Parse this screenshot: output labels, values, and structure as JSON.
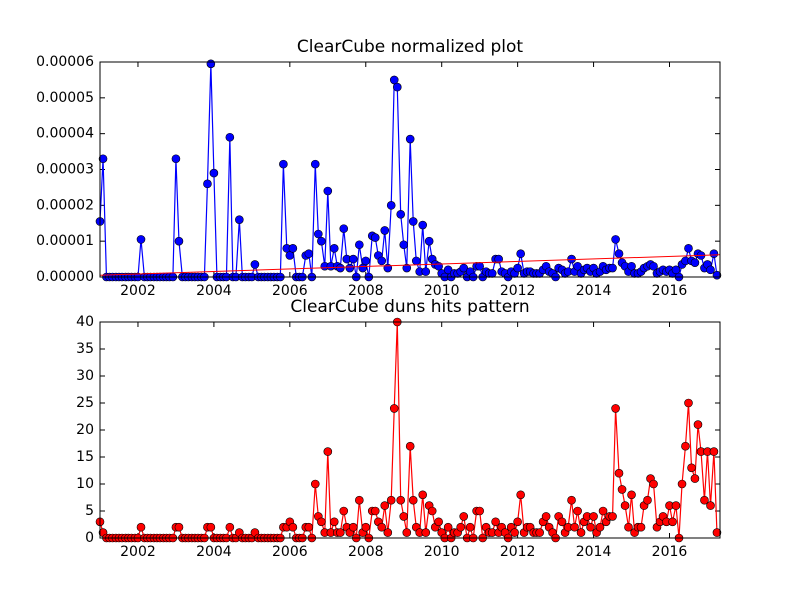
{
  "chart_data": [
    {
      "type": "line",
      "title": "ClearCube normalized plot",
      "x": [
        2001.0,
        2001.08,
        2001.17,
        2001.25,
        2001.33,
        2001.42,
        2001.5,
        2001.58,
        2001.67,
        2001.75,
        2001.83,
        2001.92,
        2002.0,
        2002.08,
        2002.17,
        2002.25,
        2002.33,
        2002.42,
        2002.5,
        2002.58,
        2002.67,
        2002.75,
        2002.83,
        2002.92,
        2003.0,
        2003.08,
        2003.17,
        2003.25,
        2003.33,
        2003.42,
        2003.5,
        2003.58,
        2003.67,
        2003.75,
        2003.83,
        2003.92,
        2004.0,
        2004.08,
        2004.17,
        2004.25,
        2004.33,
        2004.42,
        2004.5,
        2004.58,
        2004.67,
        2004.75,
        2004.83,
        2004.92,
        2005.0,
        2005.08,
        2005.17,
        2005.25,
        2005.33,
        2005.42,
        2005.5,
        2005.58,
        2005.67,
        2005.75,
        2005.83,
        2005.92,
        2006.0,
        2006.08,
        2006.17,
        2006.25,
        2006.33,
        2006.42,
        2006.5,
        2006.58,
        2006.67,
        2006.75,
        2006.83,
        2006.92,
        2007.0,
        2007.08,
        2007.17,
        2007.25,
        2007.33,
        2007.42,
        2007.5,
        2007.58,
        2007.67,
        2007.75,
        2007.83,
        2007.92,
        2008.0,
        2008.08,
        2008.17,
        2008.25,
        2008.33,
        2008.42,
        2008.5,
        2008.58,
        2008.67,
        2008.75,
        2008.83,
        2008.92,
        2009.0,
        2009.08,
        2009.17,
        2009.25,
        2009.33,
        2009.42,
        2009.5,
        2009.58,
        2009.67,
        2009.75,
        2009.83,
        2009.92,
        2010.0,
        2010.08,
        2010.17,
        2010.25,
        2010.33,
        2010.42,
        2010.5,
        2010.58,
        2010.67,
        2010.75,
        2010.83,
        2010.92,
        2011.0,
        2011.08,
        2011.17,
        2011.25,
        2011.33,
        2011.42,
        2011.5,
        2011.58,
        2011.67,
        2011.75,
        2011.83,
        2011.92,
        2012.0,
        2012.08,
        2012.17,
        2012.25,
        2012.33,
        2012.42,
        2012.5,
        2012.58,
        2012.67,
        2012.75,
        2012.83,
        2012.92,
        2013.0,
        2013.08,
        2013.17,
        2013.25,
        2013.33,
        2013.42,
        2013.5,
        2013.58,
        2013.67,
        2013.75,
        2013.83,
        2013.92,
        2014.0,
        2014.08,
        2014.17,
        2014.25,
        2014.33,
        2014.42,
        2014.5,
        2014.58,
        2014.67,
        2014.75,
        2014.83,
        2014.92,
        2015.0,
        2015.08,
        2015.17,
        2015.25,
        2015.33,
        2015.42,
        2015.5,
        2015.58,
        2015.67,
        2015.75,
        2015.83,
        2015.92,
        2016.0,
        2016.08,
        2016.17,
        2016.25,
        2016.33,
        2016.42,
        2016.5,
        2016.58,
        2016.67,
        2016.75,
        2016.83,
        2016.92,
        2017.0,
        2017.08,
        2017.17,
        2017.25
      ],
      "series": [
        {
          "color": "#0000ff",
          "values": [
            1.55e-05,
            3.3e-05,
            0,
            0,
            0,
            0,
            0,
            0,
            0,
            0,
            0,
            0,
            0,
            1.05e-05,
            0,
            0,
            0,
            0,
            0,
            0,
            0,
            0,
            0,
            0,
            3.3e-05,
            1e-05,
            0,
            0,
            0,
            0,
            0,
            0,
            0,
            0,
            2.6e-05,
            5.95e-05,
            2.9e-05,
            0,
            0,
            0,
            0,
            3.9e-05,
            0,
            0,
            1.6e-05,
            0,
            0,
            0,
            0,
            3.5e-06,
            0,
            0,
            0,
            0,
            0,
            0,
            0,
            0,
            3.15e-05,
            8e-06,
            6e-06,
            8e-06,
            0,
            0,
            0,
            6e-06,
            6.5e-06,
            0,
            3.15e-05,
            1.2e-05,
            1e-05,
            3e-06,
            2.4e-05,
            3e-06,
            8e-06,
            3e-06,
            2.5e-06,
            1.35e-05,
            5e-06,
            2.5e-06,
            5e-06,
            0,
            9e-06,
            2.5e-06,
            4.5e-06,
            0,
            1.15e-05,
            1.1e-05,
            6e-06,
            4.5e-06,
            1.3e-05,
            2.5e-06,
            2e-05,
            5.5e-05,
            5.3e-05,
            1.75e-05,
            9e-06,
            2.5e-06,
            3.85e-05,
            1.55e-05,
            4.5e-06,
            1.5e-06,
            1.45e-05,
            1.5e-06,
            1e-05,
            5e-06,
            3.5e-06,
            3e-06,
            1e-06,
            0,
            2e-06,
            0,
            1e-06,
            1e-06,
            1.5e-06,
            2.5e-06,
            0,
            1.5e-06,
            0,
            3e-06,
            3e-06,
            0,
            1.5e-06,
            1e-06,
            1e-06,
            5e-06,
            5e-06,
            1.5e-06,
            1e-06,
            0,
            1.5e-06,
            1e-06,
            2.5e-06,
            6.5e-06,
            1e-06,
            1.5e-06,
            1.5e-06,
            1e-06,
            1e-06,
            1e-06,
            2e-06,
            3e-06,
            1.5e-06,
            1e-06,
            0,
            2.5e-06,
            2e-06,
            1e-06,
            1.5e-06,
            5e-06,
            1.5e-06,
            3e-06,
            1e-06,
            2e-06,
            2.5e-06,
            1.5e-06,
            2.5e-06,
            1e-06,
            1.5e-06,
            3e-06,
            2e-06,
            2.5e-06,
            2.5e-06,
            1.05e-05,
            6.5e-06,
            4e-06,
            3e-06,
            1.5e-06,
            3e-06,
            1e-06,
            1e-06,
            1.5e-06,
            2.5e-06,
            3e-06,
            3.5e-06,
            3e-06,
            1e-06,
            1.5e-06,
            2e-06,
            1.5e-06,
            2e-06,
            1e-06,
            2e-06,
            0,
            3.5e-06,
            4.5e-06,
            8e-06,
            4.5e-06,
            4e-06,
            6.5e-06,
            6e-06,
            2.5e-06,
            3.5e-06,
            2e-06,
            6.5e-06,
            5e-07
          ]
        }
      ],
      "trend": {
        "x": [
          2001.0,
          2017.33
        ],
        "values": [
          5e-07,
          6.2e-06
        ],
        "color": "#ff0000"
      },
      "xlim": [
        2001.0,
        2017.33
      ],
      "xticks": [
        2002,
        2004,
        2006,
        2008,
        2010,
        2012,
        2014,
        2016
      ],
      "ylim": [
        0,
        6e-05
      ],
      "yticks": [
        {
          "value": 0,
          "label": "0.00000"
        },
        {
          "value": 1e-05,
          "label": "0.00001"
        },
        {
          "value": 2e-05,
          "label": "0.00002"
        },
        {
          "value": 3e-05,
          "label": "0.00003"
        },
        {
          "value": 4e-05,
          "label": "0.00004"
        },
        {
          "value": 5e-05,
          "label": "0.00005"
        },
        {
          "value": 6e-05,
          "label": "0.00006"
        }
      ]
    },
    {
      "type": "line",
      "title": "ClearCube duns hits pattern",
      "x": [
        2001.0,
        2001.08,
        2001.17,
        2001.25,
        2001.33,
        2001.42,
        2001.5,
        2001.58,
        2001.67,
        2001.75,
        2001.83,
        2001.92,
        2002.0,
        2002.08,
        2002.17,
        2002.25,
        2002.33,
        2002.42,
        2002.5,
        2002.58,
        2002.67,
        2002.75,
        2002.83,
        2002.92,
        2003.0,
        2003.08,
        2003.17,
        2003.25,
        2003.33,
        2003.42,
        2003.5,
        2003.58,
        2003.67,
        2003.75,
        2003.83,
        2003.92,
        2004.0,
        2004.08,
        2004.17,
        2004.25,
        2004.33,
        2004.42,
        2004.5,
        2004.58,
        2004.67,
        2004.75,
        2004.83,
        2004.92,
        2005.0,
        2005.08,
        2005.17,
        2005.25,
        2005.33,
        2005.42,
        2005.5,
        2005.58,
        2005.67,
        2005.75,
        2005.83,
        2005.92,
        2006.0,
        2006.08,
        2006.17,
        2006.25,
        2006.33,
        2006.42,
        2006.5,
        2006.58,
        2006.67,
        2006.75,
        2006.83,
        2006.92,
        2007.0,
        2007.08,
        2007.17,
        2007.25,
        2007.33,
        2007.42,
        2007.5,
        2007.58,
        2007.67,
        2007.75,
        2007.83,
        2007.92,
        2008.0,
        2008.08,
        2008.17,
        2008.25,
        2008.33,
        2008.42,
        2008.5,
        2008.58,
        2008.67,
        2008.75,
        2008.83,
        2008.92,
        2009.0,
        2009.08,
        2009.17,
        2009.25,
        2009.33,
        2009.42,
        2009.5,
        2009.58,
        2009.67,
        2009.75,
        2009.83,
        2009.92,
        2010.0,
        2010.08,
        2010.17,
        2010.25,
        2010.33,
        2010.42,
        2010.5,
        2010.58,
        2010.67,
        2010.75,
        2010.83,
        2010.92,
        2011.0,
        2011.08,
        2011.17,
        2011.25,
        2011.33,
        2011.42,
        2011.5,
        2011.58,
        2011.67,
        2011.75,
        2011.83,
        2011.92,
        2012.0,
        2012.08,
        2012.17,
        2012.25,
        2012.33,
        2012.42,
        2012.5,
        2012.58,
        2012.67,
        2012.75,
        2012.83,
        2012.92,
        2013.0,
        2013.08,
        2013.17,
        2013.25,
        2013.33,
        2013.42,
        2013.5,
        2013.58,
        2013.67,
        2013.75,
        2013.83,
        2013.92,
        2014.0,
        2014.08,
        2014.17,
        2014.25,
        2014.33,
        2014.42,
        2014.5,
        2014.58,
        2014.67,
        2014.75,
        2014.83,
        2014.92,
        2015.0,
        2015.08,
        2015.17,
        2015.25,
        2015.33,
        2015.42,
        2015.5,
        2015.58,
        2015.67,
        2015.75,
        2015.83,
        2015.92,
        2016.0,
        2016.08,
        2016.17,
        2016.25,
        2016.33,
        2016.42,
        2016.5,
        2016.58,
        2016.67,
        2016.75,
        2016.83,
        2016.92,
        2017.0,
        2017.08,
        2017.17,
        2017.25
      ],
      "series": [
        {
          "color": "#ff0000",
          "values": [
            3,
            1,
            0,
            0,
            0,
            0,
            0,
            0,
            0,
            0,
            0,
            0,
            0,
            2,
            0,
            0,
            0,
            0,
            0,
            0,
            0,
            0,
            0,
            0,
            2,
            2,
            0,
            0,
            0,
            0,
            0,
            0,
            0,
            0,
            2,
            2,
            0,
            0,
            0,
            0,
            0,
            2,
            0,
            0,
            1,
            0,
            0,
            0,
            0,
            1,
            0,
            0,
            0,
            0,
            0,
            0,
            0,
            0,
            2,
            2,
            3,
            2,
            0,
            0,
            0,
            2,
            2,
            0,
            10,
            4,
            3,
            1,
            16,
            1,
            3,
            1,
            1,
            5,
            2,
            1,
            2,
            0,
            7,
            1,
            2,
            0,
            5,
            5,
            3,
            2,
            6,
            1,
            7,
            24,
            40,
            7,
            4,
            1,
            17,
            7,
            2,
            1,
            8,
            1,
            6,
            5,
            2,
            3,
            1,
            0,
            2,
            0,
            1,
            1,
            2,
            4,
            0,
            2,
            0,
            5,
            5,
            0,
            2,
            1,
            1,
            3,
            1,
            2,
            1,
            0,
            2,
            1,
            3,
            8,
            1,
            2,
            2,
            1,
            1,
            1,
            3,
            4,
            2,
            1,
            0,
            4,
            3,
            1,
            2,
            7,
            2,
            5,
            1,
            3,
            4,
            2,
            4,
            1,
            2,
            5,
            3,
            4,
            4,
            24,
            12,
            9,
            6,
            2,
            8,
            1,
            2,
            2,
            6,
            7,
            11,
            10,
            2,
            3,
            4,
            3,
            6,
            3,
            6,
            0,
            10,
            17,
            25,
            13,
            11,
            21,
            16,
            7,
            16,
            6,
            16,
            1
          ]
        }
      ],
      "xlim": [
        2001.0,
        2017.33
      ],
      "xticks": [
        2002,
        2004,
        2006,
        2008,
        2010,
        2012,
        2014,
        2016
      ],
      "ylim": [
        0,
        40
      ],
      "yticks": [
        0,
        5,
        10,
        15,
        20,
        25,
        30,
        35,
        40
      ]
    }
  ]
}
